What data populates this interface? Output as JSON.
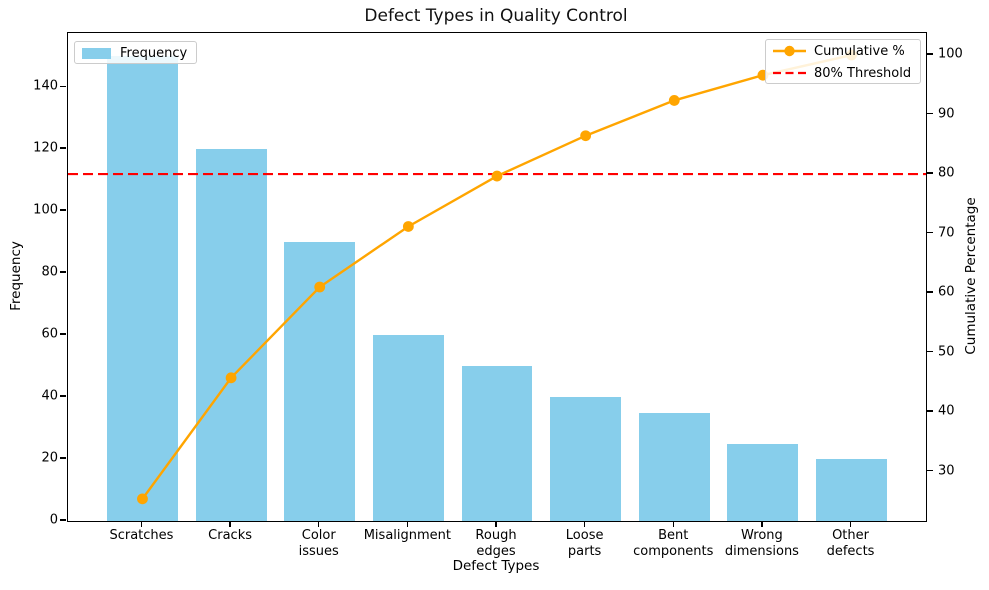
{
  "chart_data": {
    "type": "pareto-bar-line",
    "title": "Defect Types in Quality Control",
    "xlabel": "Defect Types",
    "ylabel_left": "Frequency",
    "ylabel_right": "Cumulative Percentage",
    "categories": [
      "Scratches",
      "Cracks",
      "Color\nissues",
      "Misalignment",
      "Rough\nedges",
      "Loose\nparts",
      "Bent\ncomponents",
      "Wrong\ndimensions",
      "Other\ndefects"
    ],
    "bar_series": {
      "name": "Frequency",
      "values": [
        150,
        120,
        90,
        60,
        50,
        40,
        35,
        25,
        20
      ],
      "color": "#87CEEB"
    },
    "line_series": {
      "name": "Cumulative %",
      "values": [
        25.42,
        45.76,
        61.02,
        71.19,
        79.66,
        86.44,
        92.37,
        96.61,
        100.0
      ],
      "color": "#FFA500"
    },
    "threshold_line": {
      "name": "80% Threshold",
      "value": 80,
      "color": "#FF0000",
      "style": "dashed"
    },
    "left_axis": {
      "ticks": [
        0,
        20,
        40,
        60,
        80,
        100,
        120,
        140
      ],
      "range": [
        0,
        157.5
      ]
    },
    "right_axis": {
      "ticks": [
        30,
        40,
        50,
        60,
        70,
        80,
        90,
        100
      ],
      "range": [
        21.7,
        103.7
      ]
    },
    "x_axis": {
      "range": [
        -0.84,
        8.84
      ],
      "bar_width_units": 0.8
    },
    "grid": "off",
    "legend_left_entries": [
      "Frequency"
    ],
    "legend_right_entries": [
      "Cumulative %",
      "80% Threshold"
    ]
  }
}
